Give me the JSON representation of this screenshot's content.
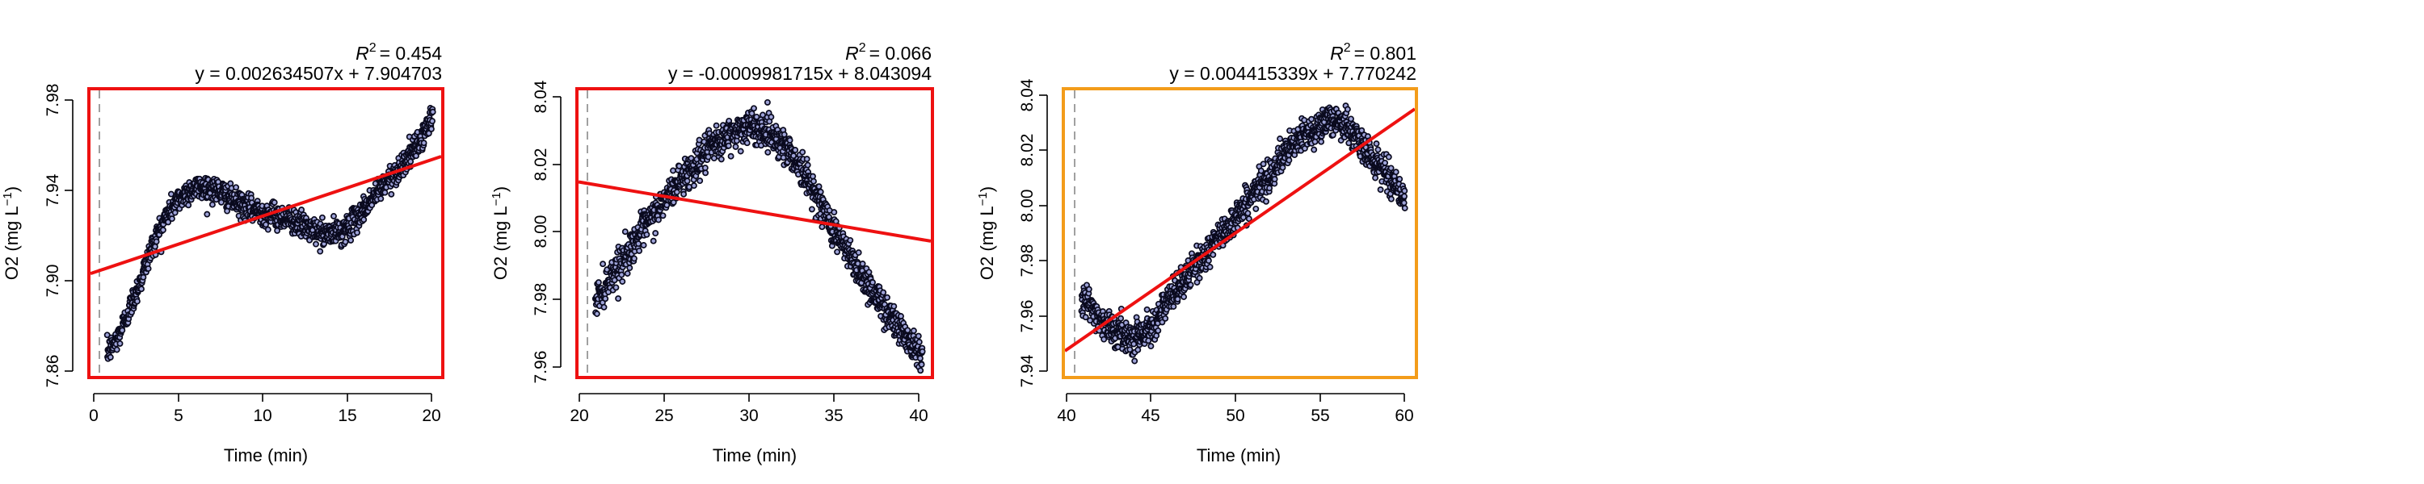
{
  "panels": [
    {
      "r2_label": "R",
      "r2_sup": "2",
      "r2_value": "= 0.454",
      "equation": "y = 0.002634507x + 7.904703",
      "frame_color": "#ee1111",
      "xlabel": "Time (min)",
      "ylabel_main": "O2 (mg L",
      "ylabel_sup": "−1",
      "ylabel_end": ")",
      "x_ticks": [
        "0",
        "5",
        "10",
        "15",
        "20"
      ],
      "y_ticks": [
        "7.86",
        "7.90",
        "7.94",
        "7.98"
      ]
    },
    {
      "r2_label": "R",
      "r2_sup": "2",
      "r2_value": "= 0.066",
      "equation": "y = -0.0009981715x + 8.043094",
      "frame_color": "#ee1111",
      "xlabel": "Time (min)",
      "ylabel_main": "O2 (mg L",
      "ylabel_sup": "−1",
      "ylabel_end": ")",
      "x_ticks": [
        "20",
        "25",
        "30",
        "35",
        "40"
      ],
      "y_ticks": [
        "7.96",
        "7.98",
        "8.00",
        "8.02",
        "8.04"
      ]
    },
    {
      "r2_label": "R",
      "r2_sup": "2",
      "r2_value": "= 0.801",
      "equation": "y = 0.004415339x + 7.770242",
      "frame_color": "#f39c1a",
      "xlabel": "Time (min)",
      "ylabel_main": "O2 (mg L",
      "ylabel_sup": "−1",
      "ylabel_end": ")",
      "x_ticks": [
        "40",
        "45",
        "50",
        "55",
        "60"
      ],
      "y_ticks": [
        "7.94",
        "7.96",
        "7.98",
        "8.00",
        "8.02",
        "8.04"
      ]
    }
  ],
  "chart_data": [
    {
      "type": "scatter",
      "xlabel": "Time (min)",
      "ylabel": "O2 (mg L−1)",
      "xlim": [
        -0.5,
        20.5
      ],
      "ylim": [
        7.855,
        7.99
      ],
      "x_ticks": [
        0,
        5,
        10,
        15,
        20
      ],
      "y_ticks": [
        7.86,
        7.9,
        7.94,
        7.98
      ],
      "marker_line_x": 0.5,
      "fit": {
        "slope": 0.002634507,
        "intercept": 7.904703,
        "r2": 0.454,
        "color": "#ee1111"
      },
      "trend_x": [
        0.5,
        1.0,
        1.5,
        2.0,
        2.5,
        3.0,
        3.5,
        4.0,
        4.5,
        5.0,
        5.5,
        6.0,
        6.5,
        7.0,
        7.5,
        8.0,
        8.5,
        9.0,
        9.5,
        10.0,
        10.5,
        11.0,
        11.5,
        12.0,
        12.5,
        13.0,
        13.5,
        14.0,
        14.5,
        15.0,
        15.5,
        16.0,
        16.5,
        17.0,
        17.5,
        18.0,
        18.5,
        19.0,
        19.5,
        20.0
      ],
      "trend_y": [
        7.866,
        7.871,
        7.88,
        7.89,
        7.9,
        7.912,
        7.922,
        7.93,
        7.936,
        7.94,
        7.943,
        7.944,
        7.944,
        7.943,
        7.941,
        7.938,
        7.936,
        7.934,
        7.933,
        7.932,
        7.931,
        7.93,
        7.929,
        7.927,
        7.925,
        7.923,
        7.922,
        7.922,
        7.923,
        7.926,
        7.93,
        7.935,
        7.94,
        7.945,
        7.949,
        7.953,
        7.958,
        7.963,
        7.97,
        7.978
      ],
      "points_per_min": 60,
      "noise_sd": 0.003
    },
    {
      "type": "scatter",
      "xlabel": "Time (min)",
      "ylabel": "O2 (mg L−1)",
      "xlim": [
        19.5,
        40.5
      ],
      "ylim": [
        7.955,
        8.056
      ],
      "x_ticks": [
        20,
        25,
        30,
        35,
        40
      ],
      "y_ticks": [
        7.96,
        7.98,
        8.0,
        8.02,
        8.04
      ],
      "marker_line_x": 20.5,
      "fit": {
        "slope": -0.0009981715,
        "intercept": 8.043094,
        "r2": 0.066,
        "color": "#ee1111"
      },
      "trend_x": [
        20.5,
        21.0,
        21.5,
        22.0,
        22.5,
        23.0,
        23.5,
        24.0,
        24.5,
        25.0,
        25.5,
        26.0,
        26.5,
        27.0,
        27.5,
        28.0,
        28.5,
        29.0,
        29.5,
        30.0,
        30.5,
        31.0,
        31.5,
        32.0,
        32.5,
        33.0,
        33.5,
        34.0,
        34.5,
        35.0,
        35.5,
        36.0,
        36.5,
        37.0,
        37.5,
        38.0,
        38.5,
        39.0,
        39.5,
        40.0
      ],
      "trend_y": [
        7.982,
        7.986,
        7.991,
        7.995,
        7.999,
        8.004,
        8.008,
        8.012,
        8.016,
        8.02,
        8.024,
        8.027,
        8.03,
        8.033,
        8.036,
        8.038,
        8.04,
        8.042,
        8.043,
        8.043,
        8.042,
        8.041,
        8.038,
        8.035,
        8.031,
        8.026,
        8.021,
        8.015,
        8.009,
        8.004,
        7.999,
        7.994,
        7.99,
        7.985,
        7.981,
        7.977,
        7.973,
        7.969,
        7.966,
        7.963
      ],
      "points_per_min": 60,
      "noise_sd": 0.003
    },
    {
      "type": "scatter",
      "xlabel": "Time (min)",
      "ylabel": "O2 (mg L−1)",
      "xlim": [
        39.5,
        60.6
      ],
      "ylim": [
        7.935,
        8.045
      ],
      "x_ticks": [
        40,
        45,
        50,
        55,
        60
      ],
      "y_ticks": [
        7.94,
        7.96,
        7.98,
        8.0,
        8.02,
        8.04
      ],
      "marker_line_x": 40.5,
      "fit": {
        "slope": 0.004415339,
        "intercept": 7.770242,
        "r2": 0.801,
        "color": "#ee1111"
      },
      "trend_x": [
        40.5,
        41.0,
        41.5,
        42.0,
        42.5,
        43.0,
        43.5,
        44.0,
        44.5,
        45.0,
        45.5,
        46.0,
        46.5,
        47.0,
        47.5,
        48.0,
        48.5,
        49.0,
        49.5,
        50.0,
        50.5,
        51.0,
        51.5,
        52.0,
        52.5,
        53.0,
        53.5,
        54.0,
        54.5,
        55.0,
        55.5,
        56.0,
        56.5,
        57.0,
        57.5,
        58.0,
        58.5,
        59.0,
        59.5,
        60.0
      ],
      "trend_y": [
        7.966,
        7.962,
        7.958,
        7.955,
        7.952,
        7.951,
        7.95,
        7.951,
        7.953,
        7.957,
        7.961,
        7.966,
        7.97,
        7.974,
        7.978,
        7.982,
        7.986,
        7.99,
        7.994,
        7.998,
        8.002,
        8.006,
        8.01,
        8.014,
        8.018,
        8.022,
        8.025,
        8.028,
        8.03,
        8.032,
        8.033,
        8.034,
        8.031,
        8.027,
        8.023,
        8.019,
        8.016,
        8.012,
        8.008,
        8.003
      ],
      "points_per_min": 60,
      "noise_sd": 0.003
    }
  ]
}
